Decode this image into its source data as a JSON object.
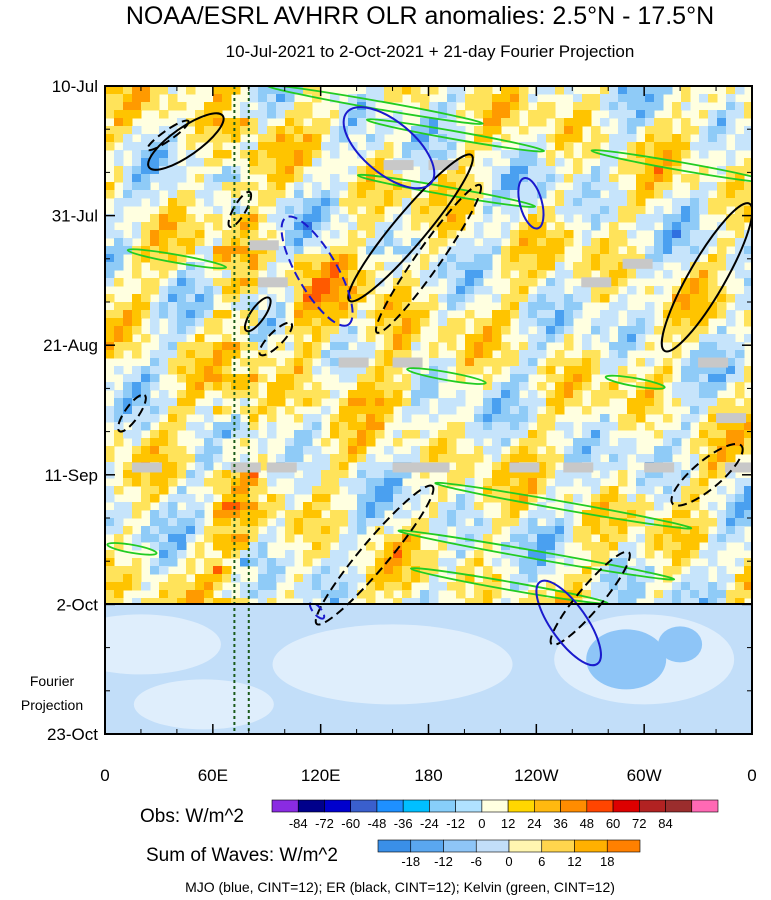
{
  "chart_data": {
    "type": "heatmap",
    "title": "NOAA/ESRL AVHRR OLR anomalies: 2.5°N - 17.5°N",
    "subtitle": "10-Jul-2021 to 2-Oct-2021 + 21-day Fourier Projection",
    "y_ticks": [
      "10-Jul",
      "31-Jul",
      "21-Aug",
      "11-Sep",
      "2-Oct",
      "23-Oct"
    ],
    "y_tick_days": [
      0,
      21,
      42,
      63,
      84,
      105
    ],
    "x_ticks": [
      "0",
      "60E",
      "120E",
      "180",
      "120W",
      "60W",
      "0"
    ],
    "x_tick_lon": [
      0,
      60,
      120,
      180,
      240,
      300,
      360
    ],
    "xlim": [
      0,
      360
    ],
    "ylim_days": [
      0,
      105
    ],
    "observation_end_day": 84,
    "projection_label": [
      "Fourier",
      "Projection"
    ],
    "reference_lines_lon": [
      72,
      80
    ],
    "obs_colorbar": {
      "label": "Obs: W/m^2",
      "ticks": [
        "-84",
        "-72",
        "-60",
        "-48",
        "-36",
        "-24",
        "-12",
        "0",
        "12",
        "24",
        "36",
        "48",
        "60",
        "72",
        "84"
      ],
      "colors": [
        "#8a2be2",
        "#00008b",
        "#0000cd",
        "#3a5fcd",
        "#1e90ff",
        "#00bfff",
        "#87cefa",
        "#b0e2ff",
        "#ffffe0",
        "#ffd700",
        "#ffb90f",
        "#ff8c00",
        "#ff4500",
        "#dd0000",
        "#b22222",
        "#9b2d2d",
        "#ff69b4"
      ]
    },
    "waves_colorbar": {
      "label": "Sum of Waves: W/m^2",
      "ticks": [
        "-18",
        "-12",
        "-6",
        "0",
        "6",
        "12",
        "18"
      ],
      "colors": [
        "#3a8fe8",
        "#5aa7f0",
        "#8ec5f7",
        "#c2def9",
        "#fff6b0",
        "#ffd54d",
        "#ffb000",
        "#ff8000"
      ]
    },
    "footer": "MJO (blue, CINT=12); ER (black, CINT=12); Kelvin (green, CINT=12)",
    "colors": {
      "mjo": "#1a1acd",
      "er": "#000000",
      "kelvin": "#22cc22",
      "missing": "#c8c8c8"
    }
  }
}
